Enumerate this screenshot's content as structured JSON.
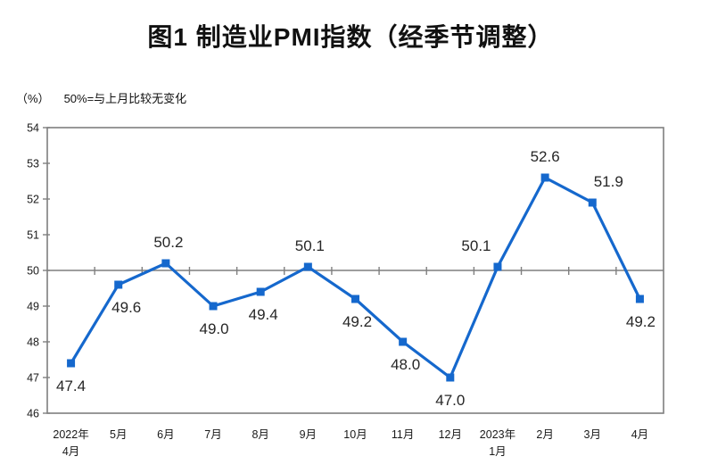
{
  "chart_data": {
    "type": "line",
    "title": "图1 制造业PMI指数（经季节调整）",
    "unit_label": "（%）",
    "note": "50%=与上月比较无变化",
    "categories": [
      [
        "2022年",
        "4月"
      ],
      [
        "5月"
      ],
      [
        "6月"
      ],
      [
        "7月"
      ],
      [
        "8月"
      ],
      [
        "9月"
      ],
      [
        "10月"
      ],
      [
        "11月"
      ],
      [
        "12月"
      ],
      [
        "2023年",
        "1月"
      ],
      [
        "2月"
      ],
      [
        "3月"
      ],
      [
        "4月"
      ]
    ],
    "series": [
      {
        "name": "制造业PMI指数",
        "values": [
          47.4,
          49.6,
          50.2,
          49.0,
          49.4,
          50.1,
          49.2,
          48.0,
          47.0,
          50.1,
          52.6,
          51.9,
          49.2
        ]
      }
    ],
    "data_labels": [
      "47.4",
      "49.6",
      "50.2",
      "49.0",
      "49.4",
      "50.1",
      "49.2",
      "48.0",
      "47.0",
      "50.1",
      "52.6",
      "51.9",
      "49.2"
    ],
    "label_placement": [
      {
        "side": "below",
        "dx": 0
      },
      {
        "side": "below",
        "dx": 9
      },
      {
        "side": "above",
        "dx": 3
      },
      {
        "side": "below",
        "dx": 1
      },
      {
        "side": "below",
        "dx": 3
      },
      {
        "side": "above",
        "dx": 2
      },
      {
        "side": "below",
        "dx": 2
      },
      {
        "side": "below",
        "dx": 3
      },
      {
        "side": "below",
        "dx": 0
      },
      {
        "side": "above",
        "dx": -24
      },
      {
        "side": "above",
        "dx": 0
      },
      {
        "side": "above",
        "dx": 18
      },
      {
        "side": "below",
        "dx": 1
      }
    ],
    "ylim": [
      46,
      54
    ],
    "ytick_interval": 1,
    "yticks": [
      "46",
      "47",
      "48",
      "49",
      "50",
      "51",
      "52",
      "53",
      "54"
    ],
    "reference_line_value": 50,
    "grid": "off",
    "legend": "none",
    "marker": "square",
    "colors": {
      "series": "#1568cd",
      "axis": "#7f7f7f",
      "tick_text": "#1a1a1a",
      "data_label": "#262626"
    }
  }
}
